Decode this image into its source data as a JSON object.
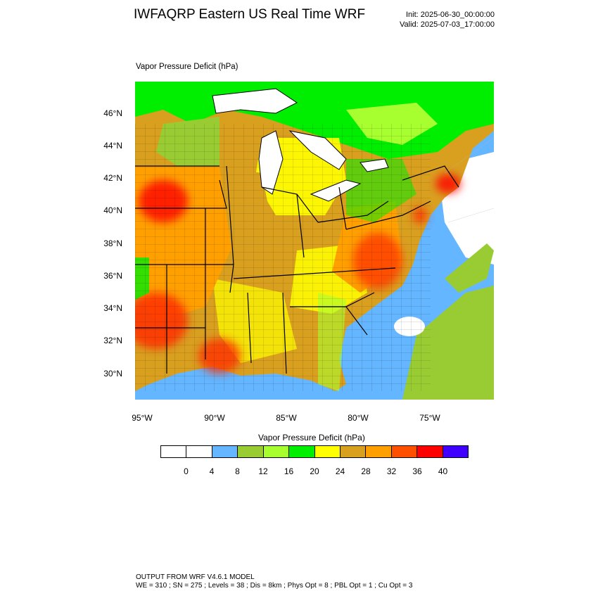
{
  "header": {
    "title": "IWFAQRP Eastern US Real Time WRF",
    "init": "Init: 2025-06-30_00:00:00",
    "valid": "Valid: 2025-07-03_17:00:00"
  },
  "plot": {
    "variable_label": "Vapor Pressure Deficit   (hPa)"
  },
  "map": {
    "lat_labels": [
      "46°N",
      "44°N",
      "42°N",
      "40°N",
      "38°N",
      "36°N",
      "34°N",
      "32°N",
      "30°N"
    ],
    "lon_labels": [
      "95°W",
      "90°W",
      "85°W",
      "80°W",
      "75°W"
    ]
  },
  "colorbar": {
    "title": "Vapor Pressure Deficit   (hPa)",
    "colors": [
      "#ffffff",
      "#ffffff",
      "#63b6ff",
      "#99cc33",
      "#a8ff30",
      "#00ee00",
      "#ffff00",
      "#d9a020",
      "#ffa000",
      "#ff5000",
      "#ff0000",
      "#4000ff"
    ],
    "labels": [
      "0",
      "4",
      "8",
      "12",
      "16",
      "20",
      "24",
      "28",
      "32",
      "36",
      "40"
    ]
  },
  "footer": {
    "line1": "OUTPUT FROM WRF V4.6.1 MODEL",
    "line2": "WE = 310 ; SN = 275 ; Levels = 38 ; Dis = 8km ; Phys Opt = 8 ; PBL Opt = 1 ; Cu Opt = 3"
  }
}
